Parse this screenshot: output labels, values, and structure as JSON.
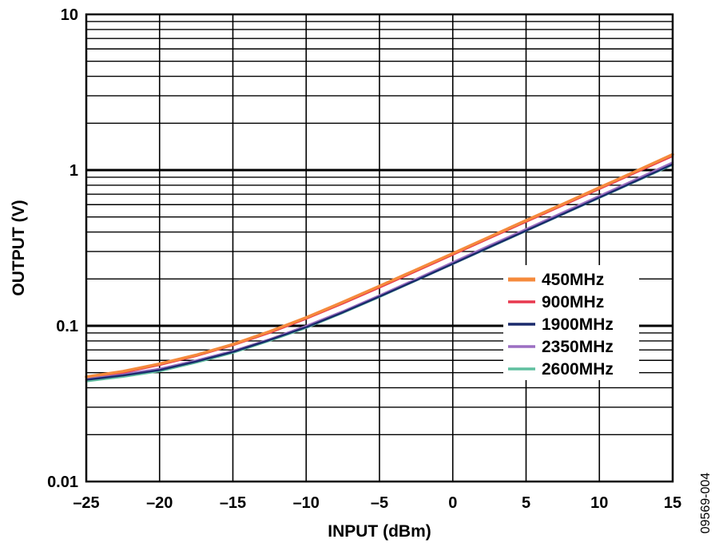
{
  "figure_id": "09569-004",
  "chart_data": {
    "type": "line",
    "title": "",
    "xlabel": "INPUT (dBm)",
    "ylabel": "OUTPUT (V)",
    "xlim": [
      -25,
      15
    ],
    "ylim": [
      0.01,
      10
    ],
    "y_scale": "log",
    "grid": true,
    "legend_position": "right",
    "x_ticks": [
      -25,
      -20,
      -15,
      -10,
      -5,
      0,
      5,
      10,
      15
    ],
    "x_tick_labels": [
      "–25",
      "–20",
      "–15",
      "–10",
      "–5",
      "0",
      "5",
      "10",
      "15"
    ],
    "y_ticks": [
      0.01,
      0.1,
      1,
      10
    ],
    "y_tick_labels": [
      "0.01",
      "0.1",
      "1",
      "10"
    ],
    "x": [
      -25,
      -22.5,
      -20,
      -17.5,
      -15,
      -12.5,
      -10,
      -7.5,
      -5,
      -2.5,
      0,
      2.5,
      5,
      7.5,
      10,
      12.5,
      15
    ],
    "series": [
      {
        "name": "450MHz",
        "color": "#f58a3c",
        "values": [
          0.047,
          0.051,
          0.057,
          0.065,
          0.076,
          0.092,
          0.113,
          0.142,
          0.18,
          0.229,
          0.292,
          0.372,
          0.475,
          0.605,
          0.772,
          0.985,
          1.26
        ]
      },
      {
        "name": "900MHz",
        "color": "#e8384f",
        "values": [
          0.047,
          0.05,
          0.056,
          0.064,
          0.075,
          0.09,
          0.111,
          0.139,
          0.176,
          0.224,
          0.286,
          0.365,
          0.465,
          0.593,
          0.756,
          0.965,
          1.23
        ]
      },
      {
        "name": "1900MHz",
        "color": "#1a2a6c",
        "values": [
          0.045,
          0.048,
          0.052,
          0.059,
          0.068,
          0.081,
          0.098,
          0.122,
          0.154,
          0.196,
          0.25,
          0.32,
          0.408,
          0.522,
          0.667,
          0.852,
          1.09
        ]
      },
      {
        "name": "2350MHz",
        "color": "#9c6fc2",
        "values": [
          0.046,
          0.049,
          0.053,
          0.06,
          0.069,
          0.082,
          0.1,
          0.124,
          0.157,
          0.2,
          0.256,
          0.328,
          0.418,
          0.535,
          0.684,
          0.874,
          1.12
        ]
      },
      {
        "name": "2600MHz",
        "color": "#5fbf9f",
        "values": [
          0.044,
          0.047,
          0.051,
          0.058,
          0.067,
          0.08,
          0.097,
          0.121,
          0.153,
          0.195,
          0.249,
          0.318,
          0.406,
          0.519,
          0.663,
          0.847,
          1.08
        ]
      }
    ]
  }
}
